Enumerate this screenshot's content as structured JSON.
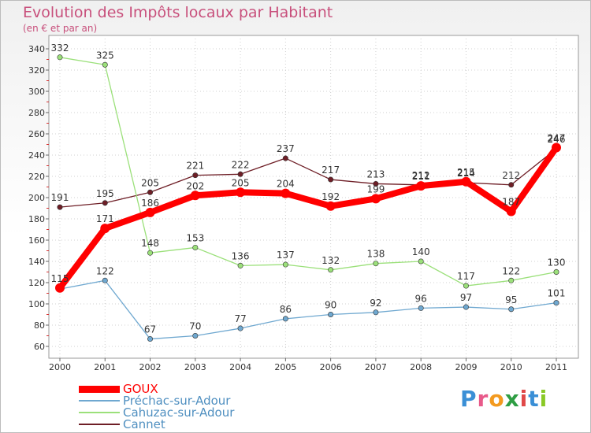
{
  "title": "Evolution des Impôts locaux par Habitant",
  "subtitle": "(en € et par an)",
  "logo": {
    "text": "Proxiti",
    "letters": [
      "P",
      "r",
      "o",
      "x",
      "i",
      "t",
      "i"
    ],
    "colors": [
      "#3a8fd6",
      "#e85a8a",
      "#f39a1f",
      "#2f9e44",
      "#e04848",
      "#3a8fd6",
      "#8ac926"
    ]
  },
  "chart_data": {
    "type": "line",
    "title": "Evolution des Impôts locaux par Habitant",
    "subtitle": "(en € et par an)",
    "xlabel": "",
    "ylabel": "",
    "x": [
      "2000",
      "2001",
      "2002",
      "2003",
      "2004",
      "2005",
      "2006",
      "2007",
      "2008",
      "2009",
      "2010",
      "2011"
    ],
    "ylim": [
      60,
      340
    ],
    "yticks": [
      "60",
      "80",
      "100",
      "120",
      "140",
      "160",
      "180",
      "200",
      "220",
      "240",
      "260",
      "280",
      "300",
      "320",
      "340"
    ],
    "grid": true,
    "legend": "bottom-left",
    "series": [
      {
        "name": "Cannet",
        "color": "#6e1e26",
        "emphasis": false,
        "values": [
          191,
          195,
          205,
          221,
          222,
          237,
          217,
          213,
          212,
          214,
          212,
          246
        ],
        "labels": [
          "191",
          "195",
          "205",
          "221",
          "222",
          "237",
          "217",
          "213",
          "212",
          "214",
          "212",
          "246"
        ]
      },
      {
        "name": "Cahuzac-sur-Adour",
        "color": "#9be07a",
        "emphasis": false,
        "values": [
          332,
          325,
          148,
          153,
          136,
          137,
          132,
          138,
          140,
          117,
          122,
          130
        ],
        "labels": [
          "332",
          "325",
          "148",
          "153",
          "136",
          "137",
          "132",
          "138",
          "140",
          "117",
          "122",
          "130"
        ]
      },
      {
        "name": "Préchac-sur-Adour",
        "color": "#6fa8d0",
        "emphasis": false,
        "values": [
          114,
          122,
          67,
          70,
          77,
          86,
          90,
          92,
          96,
          97,
          95,
          101
        ],
        "labels": [
          "",
          "122",
          "67",
          "70",
          "77",
          "86",
          "90",
          "92",
          "96",
          "97",
          "95",
          "101"
        ]
      },
      {
        "name": "GOUX",
        "color": "#ff0000",
        "emphasis": true,
        "values": [
          115,
          171,
          186,
          202,
          205,
          204,
          192,
          199,
          211,
          215,
          187,
          247
        ],
        "labels": [
          "115",
          "171",
          "186",
          "202",
          "205",
          "204",
          "192",
          "199",
          "211",
          "215",
          "187",
          "247"
        ]
      }
    ]
  }
}
